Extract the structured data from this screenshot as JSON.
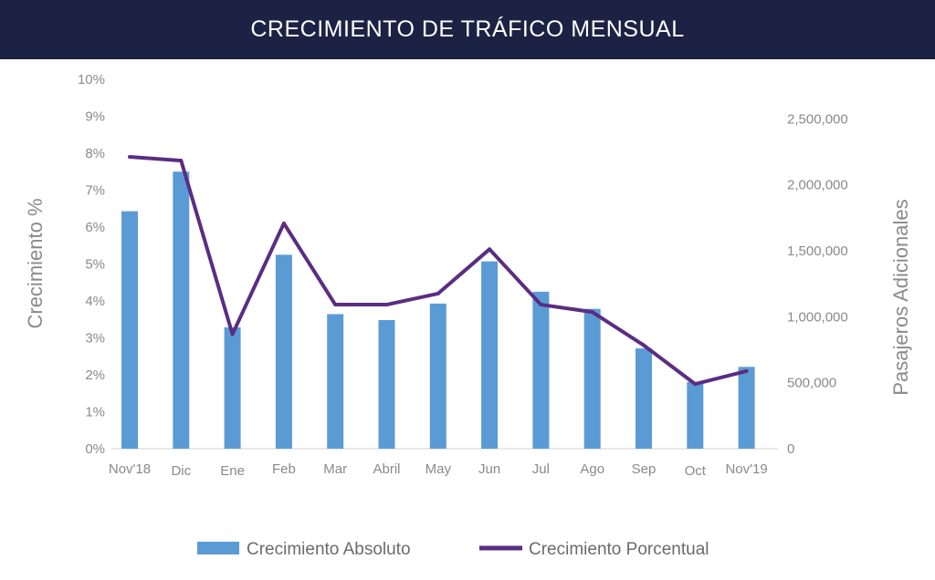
{
  "header": {
    "title": "CRECIMIENTO DE TRÁFICO MENSUAL"
  },
  "chart_data": {
    "type": "bar",
    "title": "CRECIMIENTO DE TRÁFICO MENSUAL",
    "categories": [
      "Nov'18",
      "Dic",
      "Ene",
      "Feb",
      "Mar",
      "Abril",
      "May",
      "Jun",
      "Jul",
      "Ago",
      "Sep",
      "Oct",
      "Nov'19"
    ],
    "series": [
      {
        "name": "Crecimiento Absoluto",
        "type": "bar",
        "axis": "right",
        "color": "#5b9bd5",
        "values": [
          1800000,
          2100000,
          920000,
          1470000,
          1020000,
          975000,
          1100000,
          1420000,
          1190000,
          1060000,
          760000,
          505000,
          620000
        ]
      },
      {
        "name": "Crecimiento Porcentual",
        "type": "line",
        "axis": "left",
        "color": "#5a2d82",
        "values": [
          7.9,
          7.8,
          3.1,
          6.1,
          3.9,
          3.9,
          4.2,
          5.4,
          3.9,
          3.7,
          2.8,
          1.75,
          2.1
        ]
      }
    ],
    "ylabel": "Crecimiento %",
    "ylim": [
      0,
      10
    ],
    "yticks": [
      "0%",
      "1%",
      "2%",
      "3%",
      "4%",
      "5%",
      "6%",
      "7%",
      "8%",
      "9%",
      "10%"
    ],
    "y2label": "Pasajeros Adicionales",
    "y2lim": [
      0,
      2800000
    ],
    "y2ticks": [
      {
        "value": 0,
        "label": "0"
      },
      {
        "value": 500000,
        "label": "500,000"
      },
      {
        "value": 1000000,
        "label": "1,000,000"
      },
      {
        "value": 1500000,
        "label": "1,500,000"
      },
      {
        "value": 2000000,
        "label": "2,000,000"
      },
      {
        "value": 2500000,
        "label": "2,500,000"
      }
    ],
    "legend_position": "bottom"
  }
}
